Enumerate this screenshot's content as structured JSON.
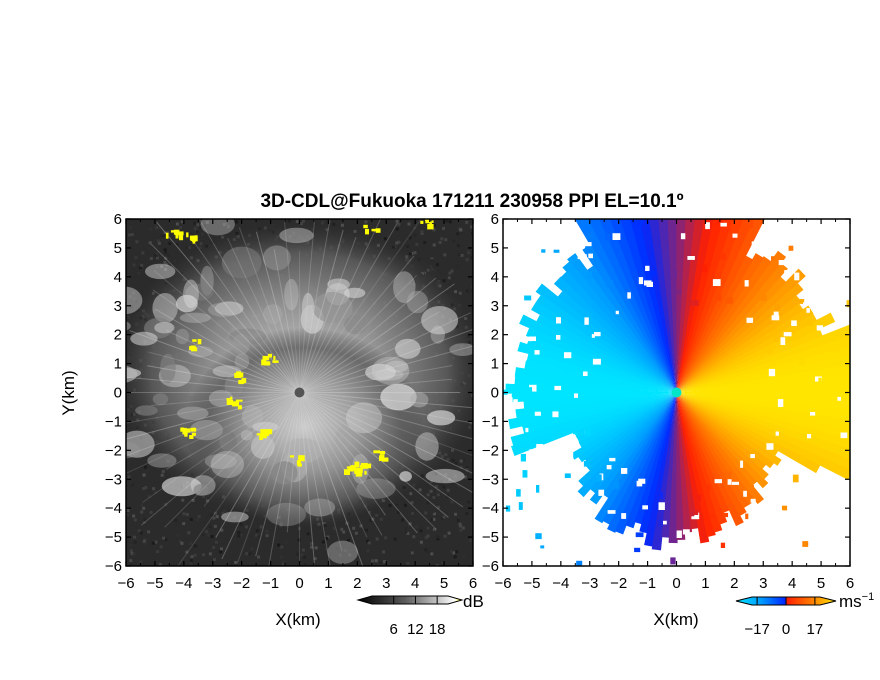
{
  "title": "3D-CDL@Fukuoka 171211 230958 PPI EL=10.1º",
  "chart_data": [
    {
      "type": "heatmap",
      "panel": "reflectivity",
      "xlabel": "X(km)",
      "ylabel": "Y(km)",
      "xlim": [
        -6,
        6
      ],
      "ylim": [
        -6,
        6
      ],
      "xticks": [
        -6,
        -5,
        -4,
        -3,
        -2,
        -1,
        0,
        1,
        2,
        3,
        4,
        5,
        6
      ],
      "yticks": [
        -6,
        -5,
        -4,
        -3,
        -2,
        -1,
        0,
        1,
        2,
        3,
        4,
        5,
        6
      ],
      "colorbar": {
        "unit": "dB",
        "ticks": [
          6,
          12,
          18
        ],
        "range": [
          0,
          21
        ],
        "colors": [
          "#000000",
          "#5a5a5a",
          "#bdbdbd",
          "#ffffff",
          "#ffff00"
        ]
      },
      "background_color": "#2b2b2b",
      "radar_center": [
        0,
        0
      ],
      "yellow_patches": [
        {
          "x": -4.4,
          "y": 5.6
        },
        {
          "x": -3.8,
          "y": 5.4
        },
        {
          "x": 2.4,
          "y": 5.8
        },
        {
          "x": 4.4,
          "y": 5.9
        },
        {
          "x": -3.6,
          "y": 1.7
        },
        {
          "x": -1.1,
          "y": 1.2
        },
        {
          "x": -2.1,
          "y": 0.6
        },
        {
          "x": -2.3,
          "y": -0.3
        },
        {
          "x": -3.9,
          "y": -1.3
        },
        {
          "x": -1.3,
          "y": -1.4
        },
        {
          "x": 2.1,
          "y": -2.6
        },
        {
          "x": 2.7,
          "y": -2.1
        },
        {
          "x": -0.1,
          "y": -2.3
        },
        {
          "x": 1.7,
          "y": -2.5
        }
      ]
    },
    {
      "type": "heatmap",
      "panel": "doppler_velocity",
      "xlabel": "X(km)",
      "xlim": [
        -6,
        6
      ],
      "ylim": [
        -6,
        6
      ],
      "xticks": [
        -6,
        -5,
        -4,
        -3,
        -2,
        -1,
        0,
        1,
        2,
        3,
        4,
        5,
        6
      ],
      "yticks": [
        -6,
        -5,
        -4,
        -3,
        -2,
        -1,
        0,
        1,
        2,
        3,
        4,
        5,
        6
      ],
      "colorbar": {
        "unit": "ms",
        "unit_exponent": "−1",
        "ticks": [
          -17,
          0,
          17
        ],
        "range": [
          -20,
          20
        ],
        "colors": [
          "#00e5ff",
          "#009cff",
          "#0028ff",
          "#ff2000",
          "#ff7a00",
          "#ffe600"
        ]
      },
      "radar_center": [
        0,
        0
      ],
      "pattern": "negative (toward radar) west, positive (away) east"
    }
  ]
}
